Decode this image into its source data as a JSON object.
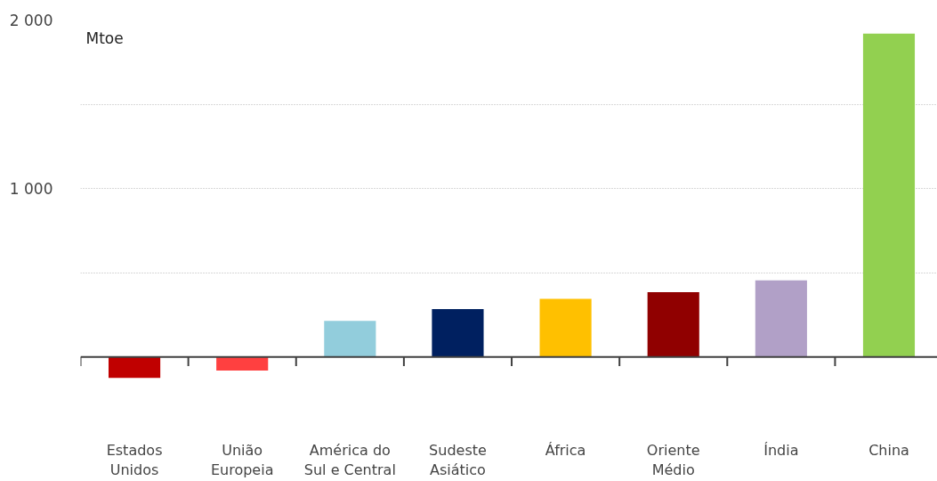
{
  "chart_data": {
    "type": "bar",
    "ylabel": "Mtoe",
    "categories": [
      "Estados Unidos",
      "União Europeia",
      "América do Sul e Central",
      "Sudeste Asiático",
      "África",
      "Oriente Médio",
      "Índia",
      "China"
    ],
    "values": [
      -125,
      -80,
      215,
      285,
      345,
      385,
      455,
      1920
    ],
    "colors": [
      "#c00000",
      "#ff4040",
      "#92cddc",
      "#002060",
      "#ffc000",
      "#900000",
      "#b1a0c7",
      "#92d050"
    ],
    "ylim": [
      -125,
      2000
    ],
    "yticks": [
      {
        "value": 500,
        "label": null
      },
      {
        "value": 1000,
        "label": "1 000"
      },
      {
        "value": 1500,
        "label": null
      },
      {
        "value": 2000,
        "label": "2 000"
      }
    ],
    "grid": "y"
  }
}
